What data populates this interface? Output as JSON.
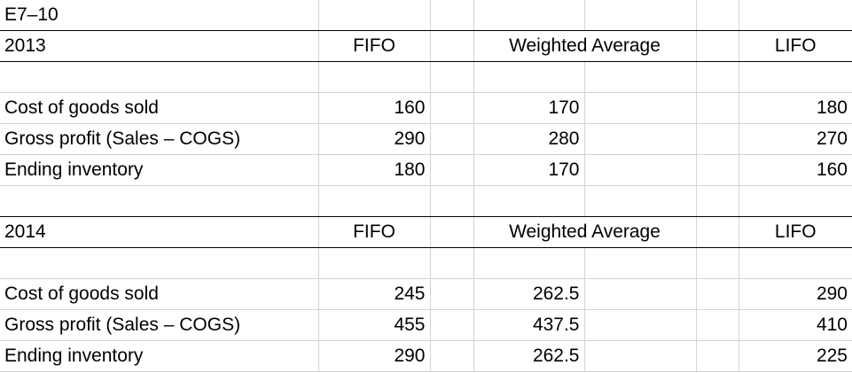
{
  "title": "E7–10",
  "sections": [
    {
      "year": "2013",
      "headers": {
        "fifo": "FIFO",
        "weighted": "Weighted Average",
        "lifo": "LIFO"
      },
      "rows": [
        {
          "label": "Cost of goods sold",
          "fifo": "160",
          "weighted": "170",
          "lifo": "180"
        },
        {
          "label": "Gross profit (Sales – COGS)",
          "fifo": "290",
          "weighted": "280",
          "lifo": "270"
        },
        {
          "label": "Ending inventory",
          "fifo": "180",
          "weighted": "170",
          "lifo": "160"
        }
      ]
    },
    {
      "year": "2014",
      "headers": {
        "fifo": "FIFO",
        "weighted": "Weighted Average",
        "lifo": "LIFO"
      },
      "rows": [
        {
          "label": "Cost of goods sold",
          "fifo": "245",
          "weighted": "262.5",
          "lifo": "290"
        },
        {
          "label": "Gross profit (Sales – COGS)",
          "fifo": "455",
          "weighted": "437.5",
          "lifo": "410"
        },
        {
          "label": "Ending inventory",
          "fifo": "290",
          "weighted": "262.5",
          "lifo": "225"
        }
      ]
    }
  ]
}
